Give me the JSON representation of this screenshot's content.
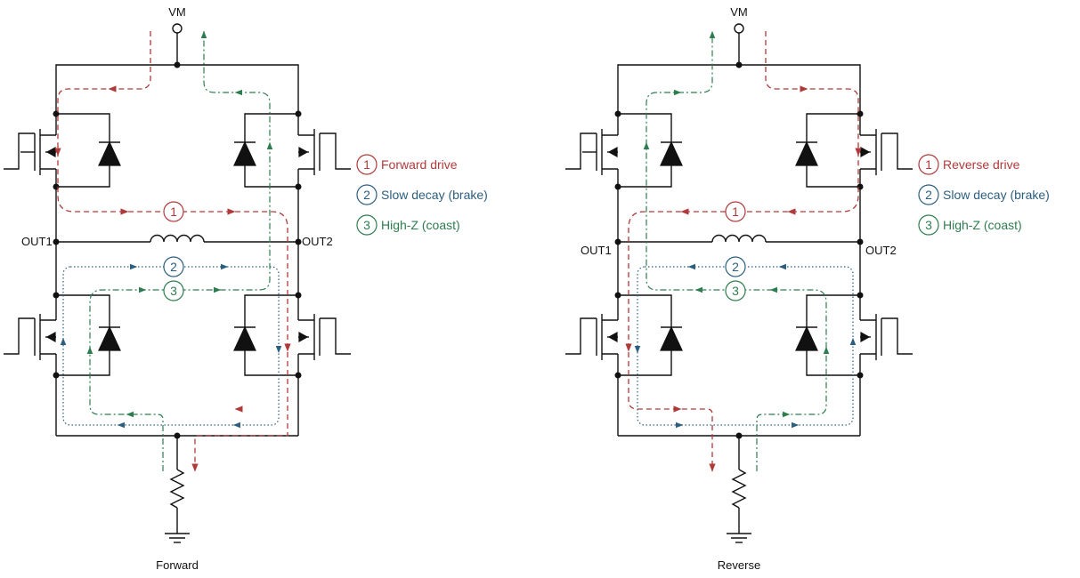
{
  "colors": {
    "drive": "#b03a3a",
    "brake": "#2c5f7f",
    "coast": "#2e7d4f",
    "wire": "#111111"
  },
  "supply_label": "VM",
  "out1_label": "OUT1",
  "out2_label": "OUT2",
  "path_numbers": {
    "drive": "1",
    "brake": "2",
    "coast": "3"
  },
  "panels": [
    {
      "caption": "Forward",
      "legend": [
        {
          "num": "1",
          "text": "Forward drive"
        },
        {
          "num": "2",
          "text": "Slow decay (brake)"
        },
        {
          "num": "3",
          "text": "High-Z (coast)"
        }
      ]
    },
    {
      "caption": "Reverse",
      "legend": [
        {
          "num": "1",
          "text": "Reverse drive"
        },
        {
          "num": "2",
          "text": "Slow decay (brake)"
        },
        {
          "num": "3",
          "text": "High-Z (coast)"
        }
      ]
    }
  ]
}
